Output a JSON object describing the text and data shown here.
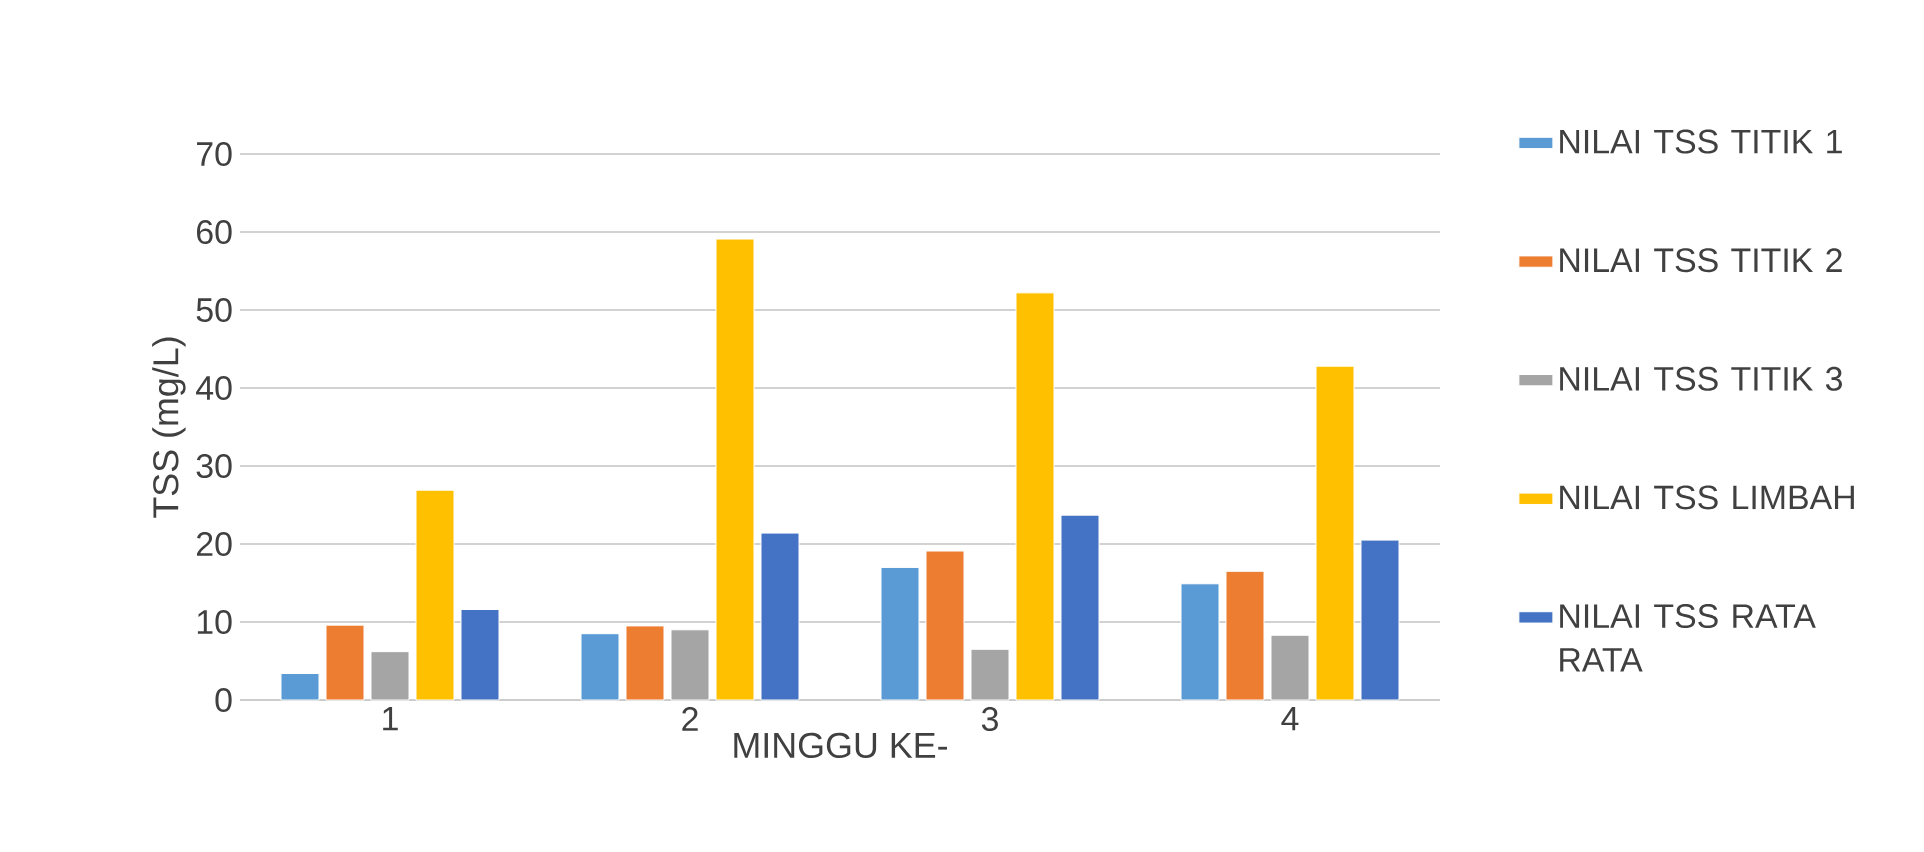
{
  "chart_data": {
    "type": "bar",
    "xlabel": "MINGGU KE-",
    "ylabel": "TSS (mg/L)",
    "categories": [
      "1",
      "2",
      "3",
      "4"
    ],
    "series": [
      {
        "name": "NILAI TSS TITIK 1",
        "color": "#5b9bd5",
        "values": [
          3.4,
          8.5,
          17.0,
          14.9
        ]
      },
      {
        "name": "NILAI TSS TITIK 2",
        "color": "#ed7d31",
        "values": [
          9.6,
          9.5,
          19.1,
          16.5
        ]
      },
      {
        "name": "NILAI TSS TITIK 3",
        "color": "#a5a5a5",
        "values": [
          6.2,
          9.0,
          6.5,
          8.3
        ]
      },
      {
        "name": "NILAI TSS LIMBAH",
        "color": "#ffc000",
        "values": [
          26.9,
          59.1,
          52.2,
          42.8
        ]
      },
      {
        "name": "NILAI TSS RATA RATA",
        "color": "#4472c4",
        "values": [
          11.6,
          21.4,
          23.7,
          20.5
        ]
      }
    ],
    "ylim": [
      0,
      70
    ],
    "yticks": [
      0,
      10,
      20,
      30,
      40,
      50,
      60,
      70
    ],
    "grid": "y",
    "legend": "right"
  }
}
